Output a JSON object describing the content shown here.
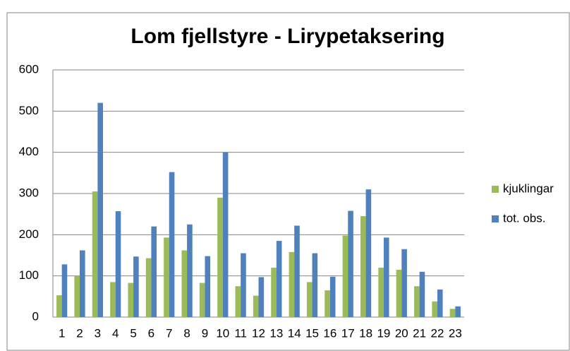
{
  "chart_data": {
    "type": "bar",
    "title": "Lom fjellstyre - Lirypetaksering",
    "categories": [
      "1",
      "2",
      "3",
      "4",
      "5",
      "6",
      "7",
      "8",
      "9",
      "10",
      "11",
      "12",
      "13",
      "14",
      "15",
      "16",
      "17",
      "18",
      "19",
      "20",
      "21",
      "22",
      "23"
    ],
    "series": [
      {
        "name": "kjuklingar",
        "color": "#9bbb59",
        "values": [
          53,
          100,
          305,
          85,
          83,
          143,
          193,
          162,
          83,
          290,
          75,
          52,
          120,
          158,
          85,
          65,
          198,
          245,
          120,
          115,
          75,
          38,
          20
        ]
      },
      {
        "name": "tot. obs.",
        "color": "#4f81bd",
        "values": [
          128,
          162,
          520,
          257,
          147,
          220,
          352,
          225,
          148,
          400,
          155,
          97,
          185,
          222,
          155,
          98,
          258,
          310,
          193,
          165,
          110,
          67,
          26
        ]
      }
    ],
    "ylim": [
      0,
      600
    ],
    "yticks": [
      0,
      100,
      200,
      300,
      400,
      500,
      600
    ],
    "grid": true,
    "legend": "right"
  }
}
